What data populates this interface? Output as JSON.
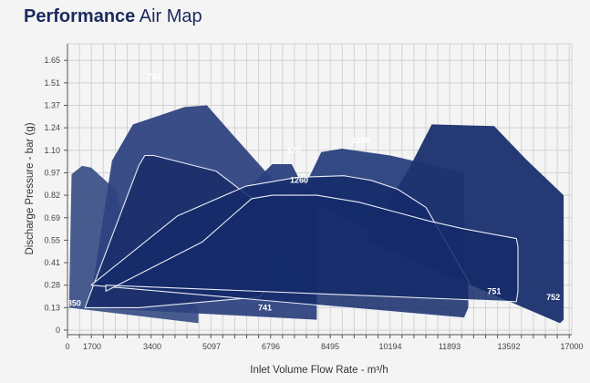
{
  "title": {
    "bold": "Performance",
    "light": "Air Map"
  },
  "chart_data": {
    "type": "area",
    "title": "Performance Air Map",
    "xlabel": "Inlet Volume Flow Rate - m³/h",
    "ylabel": "Discharge Pressure - bar (g)",
    "xlim": [
      0,
      17000
    ],
    "ylim": [
      0,
      1.71
    ],
    "grid": true,
    "x_ticks": [
      0,
      1700,
      3400,
      5097,
      6796,
      8495,
      10194,
      11893,
      13592,
      17000
    ],
    "x_tick_labels": [
      "0",
      "1700",
      "3400",
      "5097",
      "6796",
      "8495",
      "10194",
      "11893",
      "13592",
      "17000"
    ],
    "y_ticks": [
      0,
      0.13,
      0.28,
      0.41,
      0.55,
      0.69,
      0.82,
      0.97,
      1.1,
      1.24,
      1.37,
      1.51,
      1.65
    ],
    "y_tick_labels": [
      "0",
      "0.13",
      "0.28",
      "0.41",
      "0.55",
      "0.69",
      "0.82",
      "0.97",
      "1.10",
      "1.24",
      "1.37",
      "1.51",
      "1.65"
    ],
    "series": [
      {
        "name": "850",
        "fill": "#3d5288",
        "opacity": 0.95,
        "stroke": "none",
        "x": [
          95,
          95,
          283,
          1008,
          1635,
          2346,
          2770,
          4720,
          4720,
          95
        ],
        "y": [
          0.13,
          0.08,
          0.96,
          1.01,
          1.0,
          0.86,
          0.55,
          0.13,
          0.04,
          0.13
        ]
      },
      {
        "name": "742",
        "fill": "#2f4381",
        "opacity": 0.95,
        "stroke": "none",
        "x": [
          1508,
          2262,
          2856,
          4322,
          4964,
          5733,
          6754,
          7944,
          8114,
          8114,
          1508
        ],
        "y": [
          0.13,
          1.04,
          1.26,
          1.36,
          1.37,
          1.19,
          0.95,
          0.6,
          0.3,
          0.06,
          0.13
        ]
      },
      {
        "name": "870",
        "fill": "#2a3f7e",
        "opacity": 0.95,
        "stroke": "none",
        "x": [
          5945,
          6836,
          7393,
          7563,
          8114,
          8114,
          5945
        ],
        "y": [
          0.82,
          1.02,
          1.02,
          0.95,
          0.8,
          0.25,
          0.82
        ]
      },
      {
        "name": "1270",
        "fill": "#28407d",
        "opacity": 0.95,
        "stroke": "none",
        "x": [
          7648,
          8242,
          8836,
          10194,
          12318,
          12318,
          7648
        ],
        "y": [
          0.82,
          1.09,
          1.11,
          1.07,
          0.97,
          0.3,
          0.82
        ]
      },
      {
        "name": "752",
        "fill": "#1e346f",
        "opacity": 0.97,
        "stroke": "none",
        "x": [
          9515,
          10745,
          11384,
          13170,
          14500,
          16560,
          16560,
          16363,
          9515
        ],
        "y": [
          0.55,
          1.0,
          1.26,
          1.25,
          1.05,
          0.82,
          0.06,
          0.04,
          0.55
        ]
      },
      {
        "name": "741",
        "fill": "#1a2e6a",
        "opacity": 0.88,
        "stroke": "#e8ecf5",
        "x": [
          1212,
          3017,
          3190,
          3443,
          5223,
          6327,
          6624,
          6624,
          6454,
          3017,
          1212
        ],
        "y": [
          0.13,
          1.01,
          1.07,
          1.07,
          0.98,
          0.79,
          0.74,
          0.24,
          0.2,
          0.13,
          0.13
        ]
      },
      {
        "name": "1260",
        "fill": "#142a6a",
        "opacity": 0.85,
        "stroke": "#e8ecf5",
        "x": [
          1635,
          4115,
          6075,
          7563,
          8880,
          9646,
          10409,
          11215,
          12445,
          12445,
          12318,
          1635
        ],
        "y": [
          0.28,
          0.7,
          0.88,
          0.94,
          0.95,
          0.92,
          0.86,
          0.75,
          0.3,
          0.13,
          0.07,
          0.28
        ]
      },
      {
        "name": "751",
        "fill": "#142a6a",
        "opacity": 0.85,
        "stroke": "#e8ecf5",
        "x": [
          2090,
          2090,
          4835,
          6242,
          6836,
          8114,
          9307,
          10409,
          11300,
          12318,
          13997,
          14087,
          14087,
          13997,
          2090
        ],
        "y": [
          0.28,
          0.24,
          0.54,
          0.8,
          0.82,
          0.82,
          0.78,
          0.72,
          0.67,
          0.62,
          0.56,
          0.51,
          0.24,
          0.17,
          0.28
        ]
      }
    ],
    "labels": [
      {
        "text": "850",
        "x": 464,
        "y": 0.16
      },
      {
        "text": "742",
        "x": 3457,
        "y": 1.55
      },
      {
        "text": "870",
        "x": 7459,
        "y": 1.1
      },
      {
        "text": "1270",
        "x": 9355,
        "y": 1.16
      },
      {
        "text": "1260",
        "x": 7607,
        "y": 0.92
      },
      {
        "text": "751",
        "x": 13172,
        "y": 0.24
      },
      {
        "text": "741",
        "x": 6625,
        "y": 0.13
      },
      {
        "text": "752",
        "x": 15994,
        "y": 0.2
      }
    ]
  }
}
